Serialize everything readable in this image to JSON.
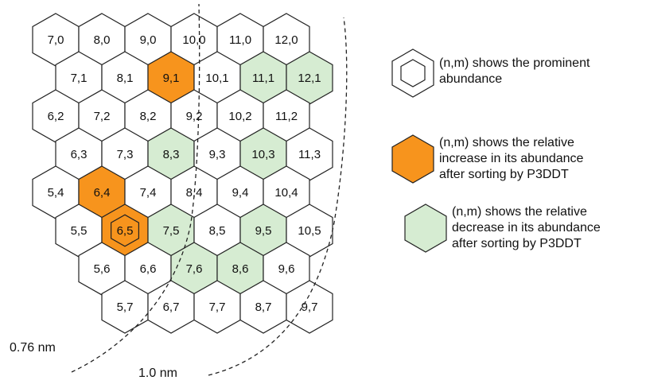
{
  "colors": {
    "increase": "#f7941d",
    "decrease": "#d6ecd2",
    "normal": "#ffffff",
    "stroke": "#222222"
  },
  "hex_map": {
    "rows": [
      {
        "cells": [
          {
            "label": "7,0",
            "state": "normal"
          },
          {
            "label": "8,0",
            "state": "normal"
          },
          {
            "label": "9,0",
            "state": "normal"
          },
          {
            "label": "10,0",
            "state": "normal"
          },
          {
            "label": "11,0",
            "state": "normal"
          },
          {
            "label": "12,0",
            "state": "normal"
          }
        ]
      },
      {
        "cells": [
          {
            "label": "7,1",
            "state": "normal"
          },
          {
            "label": "8,1",
            "state": "normal"
          },
          {
            "label": "9,1",
            "state": "increase"
          },
          {
            "label": "10,1",
            "state": "normal"
          },
          {
            "label": "11,1",
            "state": "decrease"
          },
          {
            "label": "12,1",
            "state": "decrease"
          }
        ]
      },
      {
        "cells": [
          {
            "label": "6,2",
            "state": "normal"
          },
          {
            "label": "7,2",
            "state": "normal"
          },
          {
            "label": "8,2",
            "state": "normal"
          },
          {
            "label": "9,2",
            "state": "normal"
          },
          {
            "label": "10,2",
            "state": "normal"
          },
          {
            "label": "11,2",
            "state": "normal"
          }
        ]
      },
      {
        "cells": [
          {
            "label": "6,3",
            "state": "normal"
          },
          {
            "label": "7,3",
            "state": "normal"
          },
          {
            "label": "8,3",
            "state": "decrease"
          },
          {
            "label": "9,3",
            "state": "normal"
          },
          {
            "label": "10,3",
            "state": "decrease"
          },
          {
            "label": "11,3",
            "state": "normal"
          }
        ]
      },
      {
        "cells": [
          {
            "label": "5,4",
            "state": "normal"
          },
          {
            "label": "6,4",
            "state": "increase"
          },
          {
            "label": "7,4",
            "state": "normal"
          },
          {
            "label": "8,4",
            "state": "normal"
          },
          {
            "label": "9,4",
            "state": "normal"
          },
          {
            "label": "10,4",
            "state": "normal"
          }
        ]
      },
      {
        "cells": [
          {
            "label": "5,5",
            "state": "normal"
          },
          {
            "label": "6,5",
            "state": "increase",
            "prominent": true
          },
          {
            "label": "7,5",
            "state": "decrease"
          },
          {
            "label": "8,5",
            "state": "normal"
          },
          {
            "label": "9,5",
            "state": "decrease"
          },
          {
            "label": "10,5",
            "state": "normal"
          }
        ]
      },
      {
        "cells": [
          {
            "label": "5,6",
            "state": "normal"
          },
          {
            "label": "6,6",
            "state": "normal"
          },
          {
            "label": "7,6",
            "state": "decrease"
          },
          {
            "label": "8,6",
            "state": "decrease"
          },
          {
            "label": "9,6",
            "state": "normal"
          }
        ]
      },
      {
        "cells": [
          {
            "label": "5,7",
            "state": "normal"
          },
          {
            "label": "6,7",
            "state": "normal"
          },
          {
            "label": "7,7",
            "state": "normal"
          },
          {
            "label": "8,7",
            "state": "normal"
          },
          {
            "label": "9,7",
            "state": "normal"
          }
        ]
      }
    ]
  },
  "diameter_labels": {
    "small": "0.76 nm",
    "large": "1.0 nm"
  },
  "legend": {
    "prominent": {
      "line1": "(n,m) shows the prominent",
      "line2": "abundance"
    },
    "increase": {
      "line1": "(n,m) shows the relative",
      "line2": "increase in its abundance",
      "line3": "after sorting by P3DDT"
    },
    "decrease": {
      "line1": "(n,m) shows the relative",
      "line2": "decrease in its abundance",
      "line3": "after sorting by P3DDT"
    }
  }
}
